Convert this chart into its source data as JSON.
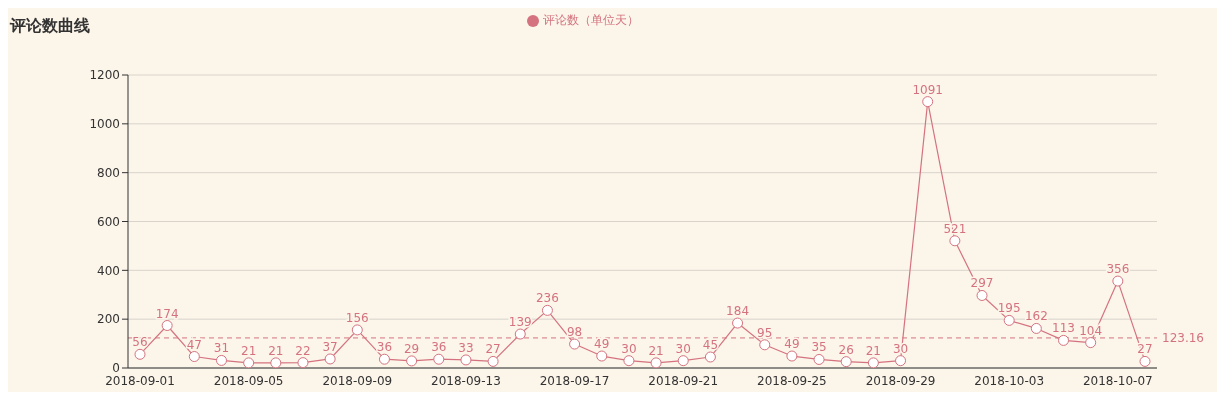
{
  "chart_data": {
    "type": "line",
    "title": "评论数曲线",
    "categories": [
      "2018-09-01",
      null,
      null,
      null,
      "2018-09-05",
      null,
      null,
      null,
      "2018-09-09",
      null,
      null,
      null,
      "2018-09-13",
      null,
      null,
      null,
      "2018-09-17",
      null,
      null,
      null,
      "2018-09-21",
      null,
      null,
      null,
      "2018-09-25",
      null,
      null,
      null,
      "2018-09-29",
      null,
      null,
      null,
      "2018-10-03",
      null,
      null,
      null,
      "2018-10-07",
      null
    ],
    "series": [
      {
        "name": "评论数（单位天）",
        "color": "#d4737f",
        "values": [
          56,
          174,
          47,
          31,
          21,
          21,
          22,
          37,
          156,
          36,
          29,
          36,
          33,
          27,
          139,
          236,
          98,
          49,
          30,
          21,
          30,
          45,
          184,
          95,
          49,
          35,
          26,
          21,
          30,
          1091,
          521,
          297,
          195,
          162,
          113,
          104,
          356,
          27
        ]
      }
    ],
    "ylim": [
      0,
      1200
    ],
    "yticks": [
      0,
      200,
      400,
      600,
      800,
      1000,
      1200
    ],
    "grid": "y",
    "legend": "top",
    "marker": "circle",
    "line_style": "solid",
    "data_labels": true,
    "ref_lines": [
      {
        "axis": "y",
        "value": 123.16,
        "label": "123.16",
        "color": "#d4737f",
        "line_style": "dashed"
      }
    ]
  }
}
